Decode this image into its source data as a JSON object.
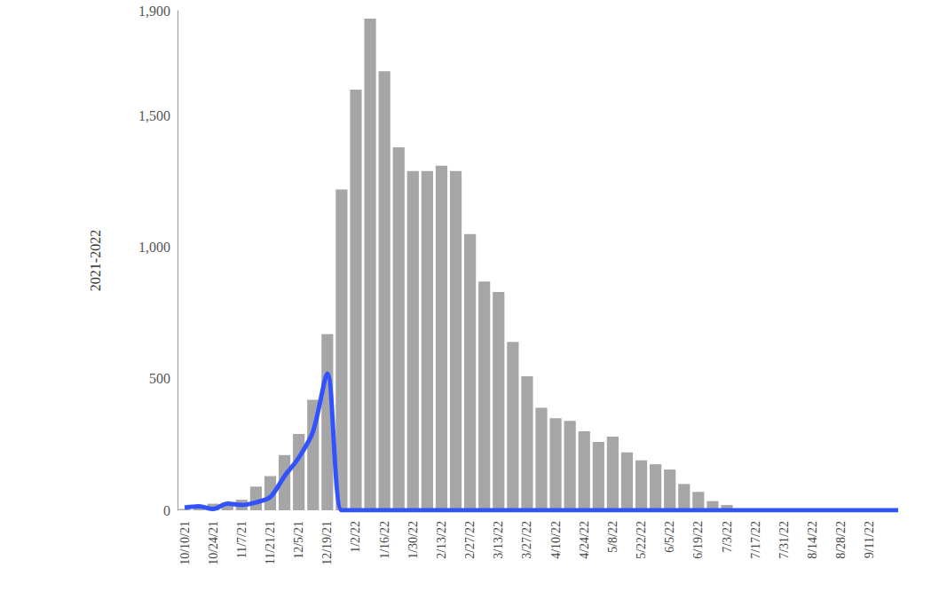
{
  "chart_data": {
    "type": "bar",
    "y_label": "2021-2022",
    "categories": [
      "10/10/21",
      null,
      "10/24/21",
      null,
      "11/7/21",
      null,
      "11/21/21",
      null,
      "12/5/21",
      null,
      "12/19/21",
      null,
      "1/2/22",
      null,
      "1/16/22",
      null,
      "1/30/22",
      null,
      "2/13/22",
      null,
      "2/27/22",
      null,
      "3/13/22",
      null,
      "3/27/22",
      null,
      "4/10/22",
      null,
      "4/24/22",
      null,
      "5/8/22",
      null,
      "5/22/22",
      null,
      "6/5/22",
      null,
      "6/19/22",
      null,
      "7/3/22",
      null,
      "7/17/22",
      null,
      "7/31/22",
      null,
      "8/14/22",
      null,
      "8/28/22",
      null,
      "9/11/22",
      null,
      null
    ],
    "series": [
      {
        "type": "bar",
        "color": "#a6a6a6",
        "values": [
          5,
          10,
          25,
          30,
          40,
          90,
          130,
          210,
          290,
          420,
          670,
          1220,
          1600,
          1870,
          1670,
          1380,
          1290,
          1290,
          1310,
          1290,
          1050,
          870,
          830,
          640,
          510,
          390,
          350,
          340,
          300,
          260,
          280,
          220,
          190,
          175,
          155,
          100,
          70,
          35,
          20,
          5,
          2,
          2,
          0,
          0,
          0,
          0,
          0,
          0,
          0,
          0,
          0
        ]
      },
      {
        "type": "line",
        "color": "#3352ff",
        "values": [
          10,
          15,
          5,
          25,
          20,
          30,
          50,
          130,
          200,
          300,
          520,
          0,
          0,
          0,
          0,
          0,
          0,
          0,
          0,
          0,
          0,
          0,
          0,
          0,
          0,
          0,
          0,
          0,
          0,
          0,
          0,
          0,
          0,
          0,
          0,
          0,
          0,
          0,
          0,
          0,
          0,
          0,
          0,
          0,
          0,
          0,
          0,
          0,
          0,
          0,
          0
        ]
      }
    ],
    "ylim": [
      0,
      1900
    ],
    "yticks": [
      0,
      500,
      1000,
      1500
    ],
    "grid": false
  }
}
